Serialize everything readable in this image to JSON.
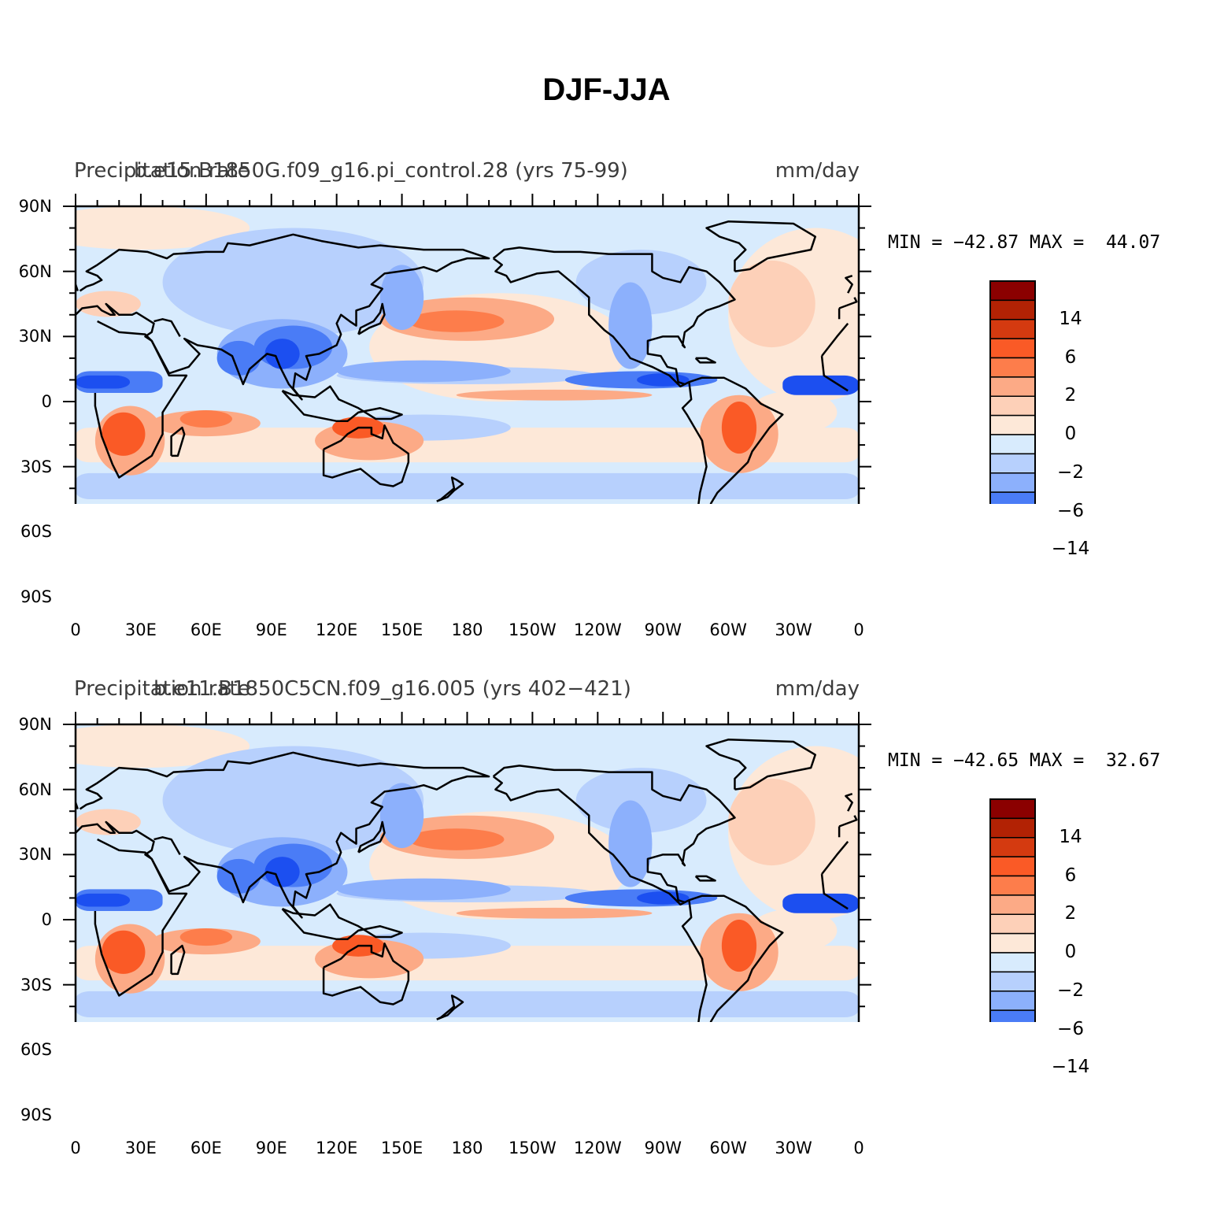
{
  "title": "DJF-JJA",
  "panels": [
    {
      "variable": "Precipitation rate",
      "case": "b.e15.B1850G.f09_g16.pi_control.28 (yrs 75-99)",
      "units": "mm/day",
      "minmax": "MIN = −42.87 MAX =  44.07"
    },
    {
      "variable": "Precipitation rate",
      "case": "b.e11.B1850C5CN.f09_g16.005 (yrs 402−421)",
      "units": "mm/day",
      "minmax": "MIN = −42.65 MAX =  32.67"
    }
  ],
  "axes": {
    "lat_labels": [
      "90N",
      "60N",
      "30N",
      "0",
      "30S",
      "60S",
      "90S"
    ],
    "lon_labels": [
      "0",
      "30E",
      "60E",
      "90E",
      "120E",
      "150E",
      "180",
      "150W",
      "120W",
      "90W",
      "60W",
      "30W",
      "0"
    ]
  },
  "colorbar": {
    "colors": [
      "#8b0000",
      "#b22204",
      "#d43a10",
      "#fa5a26",
      "#fd7d4b",
      "#fcaa86",
      "#fdd0b8",
      "#fde8d8",
      "#d8ebfd",
      "#b7d0fd",
      "#8cb0fc",
      "#4a7cf6",
      "#1c4ff0",
      "#0c30cc",
      "#0c22a8",
      "#08107c"
    ],
    "tick_labels": [
      "14",
      "6",
      "2",
      "0",
      "−2",
      "−6",
      "−14"
    ]
  }
}
